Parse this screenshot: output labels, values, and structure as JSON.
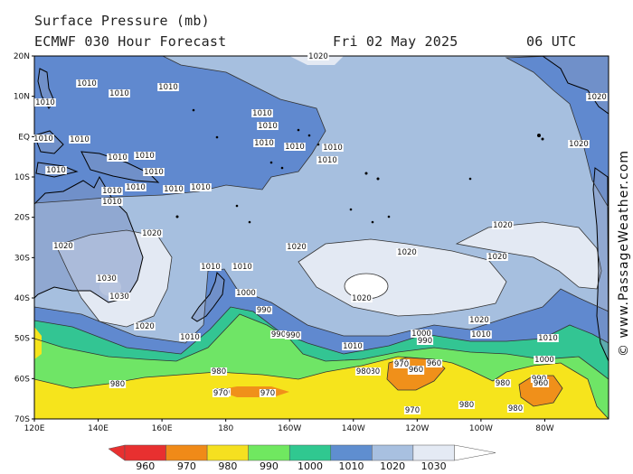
{
  "header": {
    "title": "Surface Pressure (mb)",
    "model_line": "ECMWF 030 Hour Forecast",
    "date": "Fri 02 May 2025",
    "time": "06 UTC"
  },
  "credit": "© www.PassageWeather.com",
  "axes": {
    "lat_labels": [
      "20N",
      "10N",
      "EQ",
      "10S",
      "20S",
      "30S",
      "40S",
      "50S",
      "60S",
      "70S"
    ],
    "lon_labels": [
      "120E",
      "140E",
      "160E",
      "180",
      "160W",
      "140W",
      "120W",
      "100W",
      "80W"
    ]
  },
  "legend": {
    "levels": [
      "960",
      "970",
      "980",
      "990",
      "1000",
      "1010",
      "1020",
      "1030"
    ],
    "colors": [
      "#e83030",
      "#f08a18",
      "#f5e020",
      "#70e860",
      "#30c890",
      "#5f8ed0",
      "#a8c0e0",
      "#e4eaf4",
      "#ffffff"
    ]
  },
  "band_colors": {
    "b960": "#e83030",
    "b970": "#f0901a",
    "b980": "#f6e41c",
    "b990": "#6fe566",
    "b1000": "#33c593",
    "b1010": "#6089cf",
    "b1020": "#a6bfdf",
    "b1030": "#e3e9f3",
    "land": "#7e96c4"
  },
  "isobar_labels": [
    "1020",
    "1010",
    "1010",
    "1010",
    "1010",
    "1010",
    "1010",
    "1010",
    "1010",
    "1010",
    "1010",
    "1010",
    "1010",
    "1010",
    "1010",
    "1010",
    "1010",
    "1010",
    "1010",
    "1010",
    "1010",
    "1010",
    "1020",
    "1020",
    "1020",
    "1020",
    "1020",
    "1020",
    "1020",
    "1020",
    "1030",
    "1030",
    "1010",
    "1010",
    "1000",
    "990",
    "990",
    "990",
    "1000",
    "990",
    "1020",
    "1020",
    "1020",
    "1010",
    "1010",
    "1010",
    "1010",
    "1000",
    "990",
    "980",
    "970",
    "980",
    "970",
    "960",
    "960",
    "980",
    "990",
    "980",
    "980",
    "970",
    "970",
    "980",
    "970",
    "960",
    "980",
    "970",
    "960"
  ]
}
